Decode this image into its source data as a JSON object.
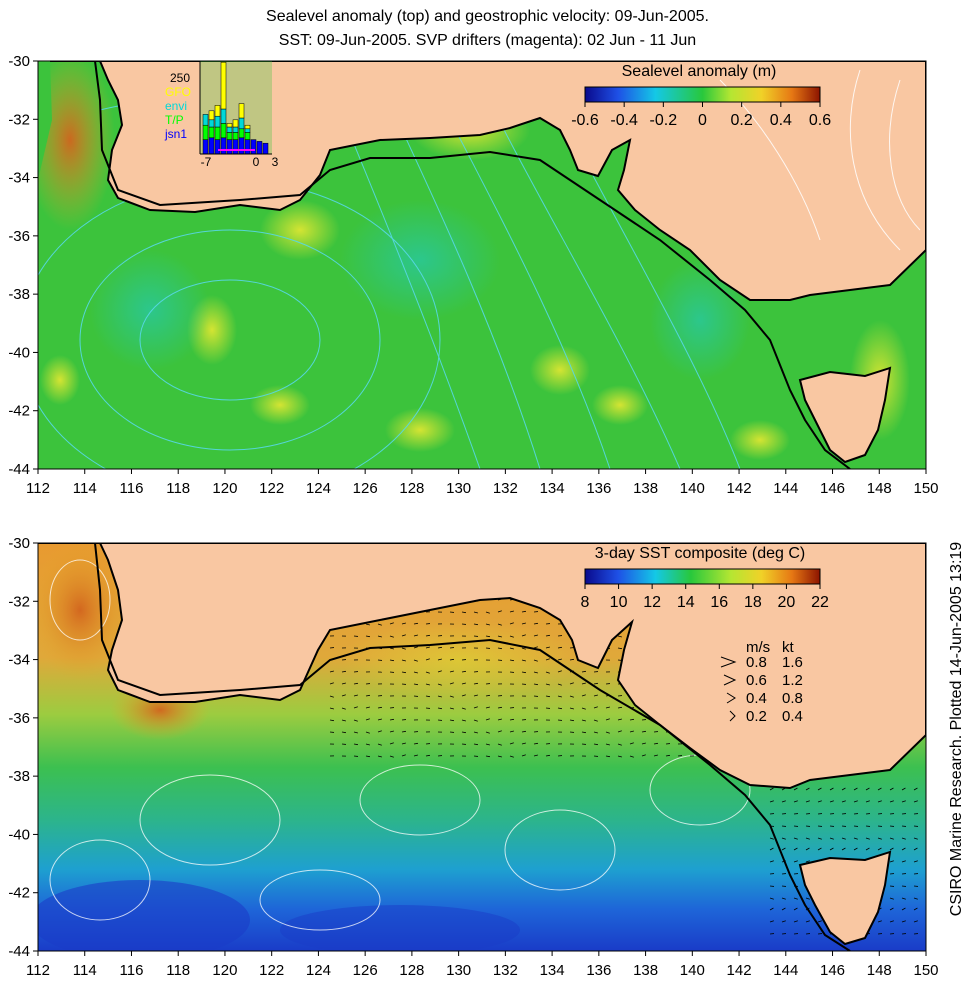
{
  "title_lines": [
    "Sealevel anomaly (top) and geostrophic velocity: 09-Jun-2005.",
    "SST: 09-Jun-2005. SVP drifters (magenta): 02 Jun - 11 Jun"
  ],
  "side_text": "CSIRO Marine Research. Plotted 14-Jun-2005 13:19",
  "colors": {
    "land": "#f9c7a2",
    "coast": "#000000",
    "contour_top": "#58d8e8",
    "contour_bottom": "#ffffff",
    "ocean_green": "#3cc33c",
    "ocean_yellow": "#c8e632",
    "sst_warm": "#f0a028",
    "sst_blue": "#1e5ad2"
  },
  "maps": {
    "top": {
      "lon_labels": [
        "112",
        "114",
        "116",
        "118",
        "120",
        "122",
        "124",
        "126",
        "128",
        "130",
        "132",
        "134",
        "136",
        "138",
        "140",
        "142",
        "144",
        "146",
        "148",
        "150"
      ],
      "lat_labels": [
        "-30",
        "-32",
        "-34",
        "-36",
        "-38",
        "-40",
        "-42",
        "-44"
      ],
      "colorbar": {
        "title": "Sealevel anomaly (m)",
        "tick_labels": [
          "-0.6",
          "-0.4",
          "-0.2",
          "0",
          "0.2",
          "0.4",
          "0.6"
        ],
        "range": [
          -0.6,
          0.6
        ]
      },
      "inset": {
        "ymax_label": "250",
        "legend": [
          "GFO",
          "envi",
          "T/P",
          "jsn1"
        ],
        "legend_colors": [
          "#ffff00",
          "#00d8d8",
          "#00ff00",
          "#0000ff"
        ],
        "x_labels": [
          "-7",
          "0",
          "3"
        ],
        "bars": [
          {
            "jsn1": 40,
            "tp": 40,
            "envi": 30,
            "gfo": 0
          },
          {
            "jsn1": 45,
            "tp": 30,
            "envi": 20,
            "gfo": 25
          },
          {
            "jsn1": 40,
            "tp": 35,
            "envi": 30,
            "gfo": 30
          },
          {
            "jsn1": 45,
            "tp": 40,
            "envi": 40,
            "gfo": 130
          },
          {
            "jsn1": 40,
            "tp": 20,
            "envi": 15,
            "gfo": 10
          },
          {
            "jsn1": 40,
            "tp": 20,
            "envi": 15,
            "gfo": 20
          },
          {
            "jsn1": 45,
            "tp": 25,
            "envi": 30,
            "gfo": 40
          },
          {
            "jsn1": 40,
            "tp": 20,
            "envi": 10,
            "gfo": 10
          },
          {
            "jsn1": 40,
            "tp": 0,
            "envi": 0,
            "gfo": 0
          },
          {
            "jsn1": 35,
            "tp": 0,
            "envi": 0,
            "gfo": 0
          },
          {
            "jsn1": 30,
            "tp": 0,
            "envi": 0,
            "gfo": 0
          }
        ]
      }
    },
    "bottom": {
      "lon_labels": [
        "112",
        "114",
        "116",
        "118",
        "120",
        "122",
        "124",
        "126",
        "128",
        "130",
        "132",
        "134",
        "136",
        "138",
        "140",
        "142",
        "144",
        "146",
        "148",
        "150"
      ],
      "lat_labels": [
        "-30",
        "-32",
        "-34",
        "-36",
        "-38",
        "-40",
        "-42",
        "-44"
      ],
      "colorbar": {
        "title": "3-day SST composite (deg C)",
        "tick_labels": [
          "8",
          "10",
          "12",
          "14",
          "16",
          "18",
          "20",
          "22"
        ],
        "range": [
          8,
          22
        ]
      },
      "velocity_key": {
        "header_ms": "m/s",
        "header_kt": "kt",
        "rows": [
          {
            "ms": "0.8",
            "kt": "1.6"
          },
          {
            "ms": "0.6",
            "kt": "1.2"
          },
          {
            "ms": "0.4",
            "kt": "0.8"
          },
          {
            "ms": "0.2",
            "kt": "0.4"
          }
        ]
      }
    }
  }
}
